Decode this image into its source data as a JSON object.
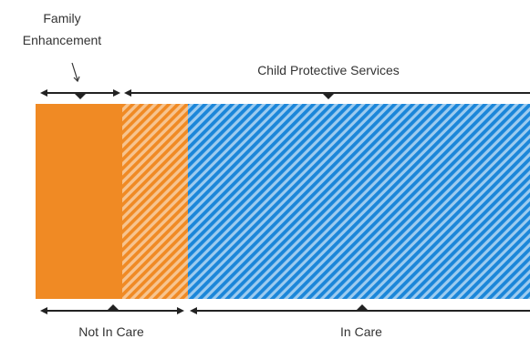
{
  "labels": {
    "family_enhancement_line1": "Family",
    "family_enhancement_line2": "Enhancement",
    "child_protective_services": "Child Protective Services",
    "not_in_care": "Not In Care",
    "in_care": "In Care"
  },
  "colors": {
    "orange": "#f08a24",
    "orange_light": "#f7c48f",
    "blue": "#1b86d9",
    "blue_light": "#8cc4ee",
    "line": "#222222",
    "text": "#333333"
  },
  "segments": [
    {
      "name": "family-enhancement-solid",
      "color": "orange",
      "hatched": false
    },
    {
      "name": "not-in-care-hatched",
      "color": "orange",
      "hatched": true
    },
    {
      "name": "in-care-hatched",
      "color": "blue",
      "hatched": true
    }
  ]
}
